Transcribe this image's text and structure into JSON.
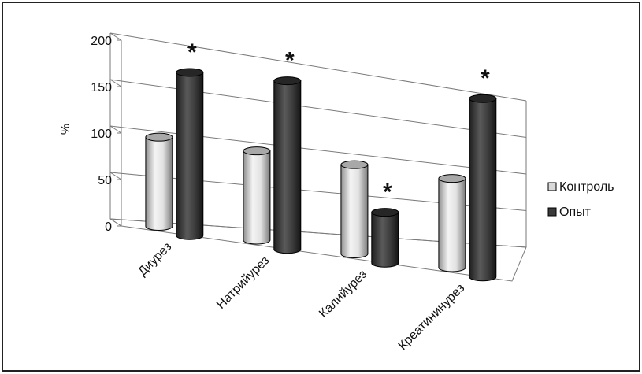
{
  "chart_data": {
    "type": "bar",
    "style": "3d-cylinder",
    "title": "",
    "xlabel": "",
    "ylabel": "%",
    "ylim": [
      0,
      200
    ],
    "yticks": [
      "0",
      "50",
      "100",
      "150",
      "200"
    ],
    "grid": true,
    "legend_position": "right",
    "categories": [
      "Диурез",
      "Натрийурез",
      "Калийурез",
      "Креатининурез"
    ],
    "series": [
      {
        "name": "Контроль",
        "color": "#d9d9d9",
        "values": [
          100,
          100,
          100,
          100
        ]
      },
      {
        "name": "Опыт",
        "color": "#3a3a3a",
        "values": [
          183,
          189,
          57,
          200
        ]
      }
    ],
    "annotations": [
      "*",
      "*",
      "*",
      "*"
    ]
  }
}
